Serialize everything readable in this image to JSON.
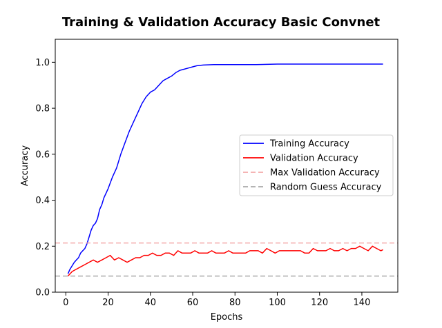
{
  "chart_data": {
    "type": "line",
    "title": "Training & Validation Accuracy Basic Convnet",
    "xlabel": "Epochs",
    "ylabel": "Accuracy",
    "xlim": [
      -5,
      157
    ],
    "ylim": [
      0,
      1.1
    ],
    "xticks": [
      0,
      20,
      40,
      60,
      80,
      100,
      120,
      140
    ],
    "yticks": [
      0.0,
      0.2,
      0.4,
      0.6,
      0.8,
      1.0
    ],
    "grid": false,
    "legend_position": "center-right",
    "series": [
      {
        "name": "Training Accuracy",
        "color": "#0000ff",
        "style": "solid",
        "x": [
          1,
          2,
          3,
          4,
          5,
          6,
          7,
          8,
          9,
          10,
          11,
          12,
          13,
          14,
          15,
          16,
          17,
          18,
          19,
          20,
          22,
          24,
          26,
          28,
          30,
          32,
          34,
          36,
          38,
          40,
          42,
          44,
          46,
          48,
          50,
          52,
          54,
          56,
          58,
          60,
          62,
          65,
          70,
          75,
          80,
          90,
          100,
          110,
          120,
          130,
          140,
          150
        ],
        "y": [
          0.08,
          0.1,
          0.115,
          0.13,
          0.14,
          0.15,
          0.17,
          0.18,
          0.19,
          0.21,
          0.24,
          0.27,
          0.29,
          0.3,
          0.32,
          0.36,
          0.38,
          0.41,
          0.43,
          0.45,
          0.5,
          0.54,
          0.6,
          0.65,
          0.7,
          0.74,
          0.78,
          0.82,
          0.85,
          0.87,
          0.88,
          0.9,
          0.92,
          0.93,
          0.94,
          0.955,
          0.965,
          0.97,
          0.975,
          0.98,
          0.985,
          0.988,
          0.99,
          0.99,
          0.99,
          0.99,
          0.992,
          0.992,
          0.992,
          0.992,
          0.992,
          0.992
        ]
      },
      {
        "name": "Validation Accuracy",
        "color": "#ff0000",
        "style": "solid",
        "x": [
          1,
          3,
          5,
          7,
          9,
          11,
          13,
          15,
          17,
          19,
          21,
          23,
          25,
          27,
          29,
          31,
          33,
          35,
          37,
          39,
          41,
          43,
          45,
          47,
          49,
          51,
          53,
          55,
          57,
          59,
          61,
          63,
          65,
          67,
          69,
          71,
          73,
          75,
          77,
          79,
          81,
          83,
          85,
          87,
          89,
          91,
          93,
          95,
          97,
          99,
          101,
          103,
          105,
          107,
          109,
          111,
          113,
          115,
          117,
          119,
          121,
          123,
          125,
          127,
          129,
          131,
          133,
          135,
          137,
          139,
          141,
          143,
          145,
          147,
          149,
          150
        ],
        "y": [
          0.07,
          0.09,
          0.1,
          0.11,
          0.12,
          0.13,
          0.14,
          0.13,
          0.14,
          0.15,
          0.16,
          0.14,
          0.15,
          0.14,
          0.13,
          0.14,
          0.15,
          0.15,
          0.16,
          0.16,
          0.17,
          0.16,
          0.16,
          0.17,
          0.17,
          0.16,
          0.18,
          0.17,
          0.17,
          0.17,
          0.18,
          0.17,
          0.17,
          0.17,
          0.18,
          0.17,
          0.17,
          0.17,
          0.18,
          0.17,
          0.17,
          0.17,
          0.17,
          0.18,
          0.18,
          0.18,
          0.17,
          0.19,
          0.18,
          0.17,
          0.18,
          0.18,
          0.18,
          0.18,
          0.18,
          0.18,
          0.17,
          0.17,
          0.19,
          0.18,
          0.18,
          0.18,
          0.19,
          0.18,
          0.18,
          0.19,
          0.18,
          0.19,
          0.19,
          0.2,
          0.19,
          0.18,
          0.2,
          0.19,
          0.18,
          0.185
        ]
      },
      {
        "name": "Max Validation Accuracy",
        "color": "#f4aaaa",
        "style": "dashed",
        "y_const": 0.214
      },
      {
        "name": "Random Guess Accuracy",
        "color": "#aaaaaa",
        "style": "dashed",
        "y_const": 0.07
      }
    ]
  }
}
